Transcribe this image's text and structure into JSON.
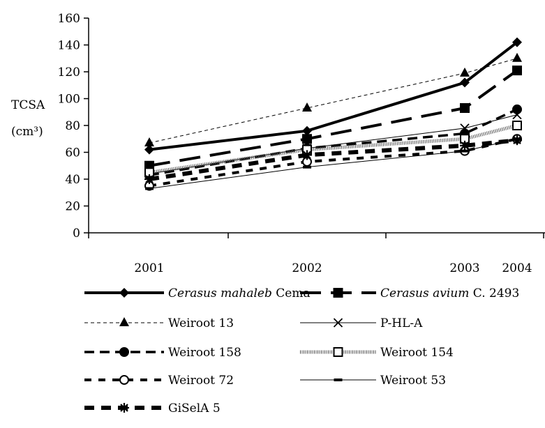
{
  "chart_data": {
    "type": "line",
    "title": "",
    "ylabel": "TCSA",
    "ylabel_unit": "(cm³)",
    "xlabel": "",
    "categories": [
      "2001",
      "2002",
      "2003",
      "2004"
    ],
    "ylim": [
      0,
      160
    ],
    "yticks": [
      "0",
      "20",
      "40",
      "60",
      "80",
      "100",
      "120",
      "140",
      "160"
    ],
    "grid": false,
    "legend_placement": "bottom",
    "series": [
      {
        "name_italic": "Cerasus mahaleb",
        "name_rest": " Cema",
        "marker": "diamond",
        "line": "solid-thick",
        "values": [
          62,
          76,
          112,
          142
        ]
      },
      {
        "name_italic": "Cerasus avium",
        "name_rest": " C. 2493",
        "marker": "square",
        "line": "long-dash-thick",
        "values": [
          50,
          70,
          93,
          121
        ]
      },
      {
        "name_italic": "",
        "name_rest": "Weiroot 13",
        "marker": "triangle",
        "line": "thin-dash",
        "values": [
          67,
          93,
          119,
          130
        ]
      },
      {
        "name_italic": "",
        "name_rest": "P-HL-A",
        "marker": "x",
        "line": "thin-solid",
        "values": [
          44,
          63,
          78,
          88
        ]
      },
      {
        "name_italic": "",
        "name_rest": "Weiroot 158",
        "marker": "circle",
        "line": "medium-dash",
        "values": [
          43,
          63,
          74,
          92
        ]
      },
      {
        "name_italic": "",
        "name_rest": "Weiroot 154",
        "marker": "open-square",
        "line": "dotted-band",
        "values": [
          45,
          62,
          70,
          80
        ]
      },
      {
        "name_italic": "",
        "name_rest": "Weiroot 72",
        "marker": "open-circle",
        "line": "short-dash",
        "values": [
          35,
          53,
          61,
          70
        ]
      },
      {
        "name_italic": "",
        "name_rest": "Weiroot 53",
        "marker": "dash",
        "line": "thin-solid",
        "values": [
          33,
          49,
          61,
          70
        ]
      },
      {
        "name_italic": "",
        "name_rest": "GiSelA 5",
        "marker": "star",
        "line": "block-dash",
        "values": [
          40,
          58,
          65,
          69
        ]
      }
    ]
  }
}
